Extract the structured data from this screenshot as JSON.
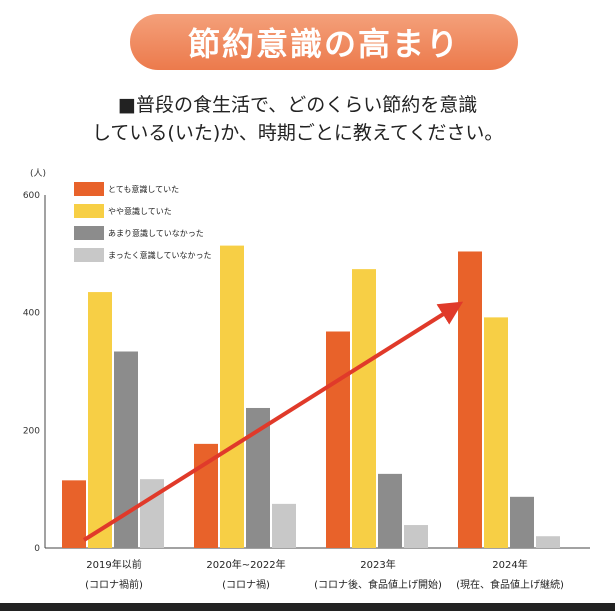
{
  "header": {
    "title": "節約意識の高まり",
    "subtitle_line1": "■普段の食生活で、どのくらい節約を意識",
    "subtitle_line2": "している(いた)か、時期ごとに教えてください。"
  },
  "chart_data": {
    "type": "bar",
    "ylabel": "(人)",
    "ylim": [
      0,
      600
    ],
    "yticks": [
      0,
      200,
      400,
      600
    ],
    "grid": false,
    "legend_position": "top-left",
    "categories": [
      [
        "2019年以前",
        "(コロナ禍前)"
      ],
      [
        "2020年~2022年",
        "(コロナ禍)"
      ],
      [
        "2023年",
        "(コロナ後、食品値上げ開始)"
      ],
      [
        "2024年",
        "(現在、食品値上げ継続)"
      ]
    ],
    "series": [
      {
        "name": "とても意識していた",
        "color": "#e8622a",
        "values": [
          115,
          177,
          368,
          504
        ]
      },
      {
        "name": "やや意識していた",
        "color": "#f7cf45",
        "values": [
          435,
          514,
          474,
          392
        ]
      },
      {
        "name": "あまり意識していなかった",
        "color": "#8c8c8c",
        "values": [
          334,
          238,
          126,
          87
        ]
      },
      {
        "name": "まったく意識していなかった",
        "color": "#c8c8c8",
        "values": [
          117,
          75,
          39,
          20
        ]
      }
    ],
    "annotation": {
      "type": "arrow",
      "color": "#e03a2a",
      "from_category": 0,
      "to_category": 3
    }
  }
}
